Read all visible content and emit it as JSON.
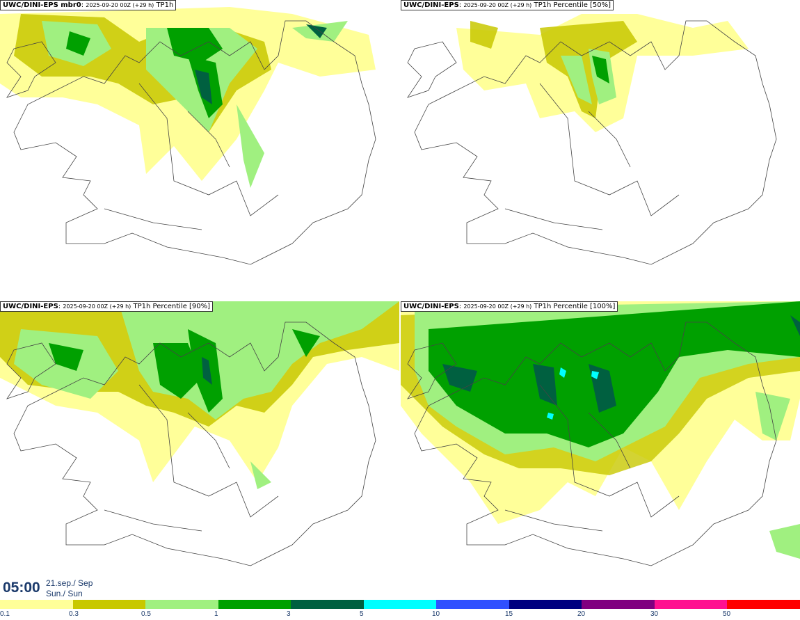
{
  "panels": [
    {
      "model": "UWC/DINI-EPS mbr0",
      "date": "2025-09-20 00Z (+29 h)",
      "field": "TP1h"
    },
    {
      "model": "UWC/DINI-EPS",
      "date": "2025-09-20 00Z (+29 h)",
      "field": "TP1h Percentile [50%]"
    },
    {
      "model": "UWC/DINI-EPS",
      "date": "2025-09-20 00Z (+29 h)",
      "field": "TP1h Percentile [90%]"
    },
    {
      "model": "UWC/DINI-EPS",
      "date": "2025-09-20 00Z (+29 h)",
      "field": "TP1h Percentile [100%]"
    }
  ],
  "valid": {
    "time": "05:00",
    "day1": "21.sep./ Sep",
    "day2": "Sun./ Sun"
  },
  "legend": {
    "colors": [
      "#ffff99",
      "#c8c800",
      "#a0f080",
      "#00a000",
      "#006040",
      "#00ffff",
      "#3050ff",
      "#000080",
      "#800080",
      "#ff1090",
      "#ff0000"
    ],
    "labels": [
      "0.1",
      "0.3",
      "0.5",
      "1",
      "3",
      "5",
      "10",
      "15",
      "20",
      "30",
      "50"
    ]
  }
}
